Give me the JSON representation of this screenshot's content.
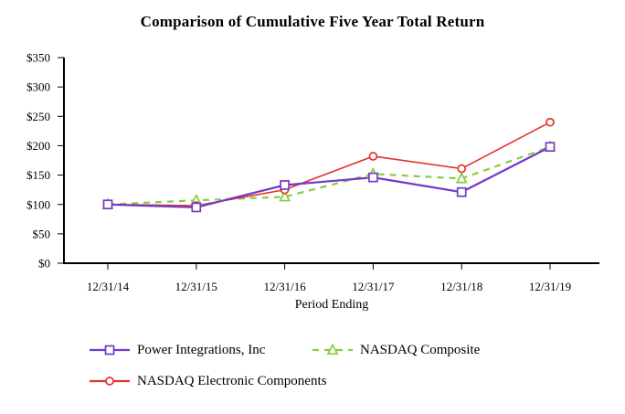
{
  "chart_data": {
    "type": "line",
    "title": "Comparison of Cumulative Five Year Total Return",
    "xlabel": "Period Ending",
    "ylabel": "",
    "ylim": [
      0,
      350
    ],
    "grid": false,
    "legend_position": "bottom",
    "axis_color": "#000000",
    "categories": [
      "12/31/14",
      "12/31/15",
      "12/31/16",
      "12/31/17",
      "12/31/18",
      "12/31/19"
    ],
    "y_ticks": [
      {
        "value": 0,
        "label": "$0"
      },
      {
        "value": 50,
        "label": "$50"
      },
      {
        "value": 100,
        "label": "$100"
      },
      {
        "value": 150,
        "label": "$150"
      },
      {
        "value": 200,
        "label": "$200"
      },
      {
        "value": 250,
        "label": "$250"
      },
      {
        "value": 300,
        "label": "$300"
      },
      {
        "value": 350,
        "label": "$350"
      }
    ],
    "series": [
      {
        "name": "NASDAQ Composite",
        "values": [
          100,
          107,
          113,
          152,
          144,
          198
        ],
        "color": "#84CE3C",
        "line_style": "dashed",
        "marker": "triangle",
        "legend_slot": 1
      },
      {
        "name": "NASDAQ Electronic Components",
        "values": [
          100,
          98,
          125,
          182,
          161,
          240
        ],
        "color": "#E3312B",
        "line_style": "solid",
        "marker": "circle",
        "legend_slot": 2
      },
      {
        "name": "Power Integrations, Inc",
        "values": [
          100,
          95,
          133,
          146,
          121,
          198
        ],
        "color": "#7438C9",
        "line_style": "solid",
        "marker": "square",
        "legend_slot": 0
      }
    ]
  }
}
